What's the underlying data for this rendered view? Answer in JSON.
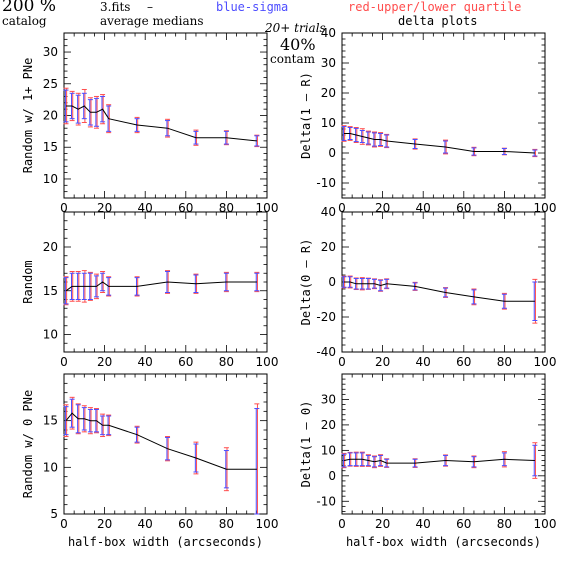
{
  "header": {
    "percent": "200 %",
    "catalog": "catalog",
    "fits": "3.fits",
    "dash": "–",
    "avg_medians": "average medians",
    "blue_sigma": "blue-sigma",
    "red_quartile": "red-upper/lower quartile",
    "trials": "20+ trials",
    "contam_pct": "40%",
    "contam": "contam",
    "delta_plots": "delta plots"
  },
  "colors": {
    "blue": "#4d4dff",
    "red": "#ff4d4d",
    "line": "#000000"
  },
  "chart_data": [
    {
      "type": "line",
      "ylabel": "Random w/ 1+ PNe",
      "xlabel": "",
      "xlim": [
        0,
        100
      ],
      "ylim": [
        7,
        33
      ],
      "xticks": [
        0,
        20,
        40,
        60,
        80,
        100
      ],
      "yticks": [
        10,
        15,
        20,
        25,
        30
      ],
      "x": [
        1,
        4,
        7,
        10,
        13,
        16,
        19,
        22,
        36,
        51,
        65,
        80,
        95
      ],
      "y": [
        21.5,
        21.5,
        21,
        21.5,
        20.5,
        20.5,
        21,
        19.5,
        18.5,
        18,
        16.5,
        16.5,
        16
      ],
      "sigma": [
        2.5,
        2,
        2.2,
        2,
        2,
        2.2,
        2,
        2,
        1,
        1.2,
        1,
        1,
        0.8
      ],
      "quartile": [
        2.8,
        2.3,
        2.5,
        2.6,
        2.3,
        2.5,
        2.3,
        2.2,
        1.2,
        1.4,
        1.2,
        1.1,
        0.9
      ]
    },
    {
      "type": "line",
      "ylabel": "Delta(1 – R)",
      "xlabel": "",
      "xlim": [
        0,
        100
      ],
      "ylim": [
        -15,
        40
      ],
      "xticks": [
        0,
        20,
        40,
        60,
        80,
        100
      ],
      "yticks": [
        -10,
        0,
        10,
        20,
        30,
        40
      ],
      "x": [
        1,
        4,
        7,
        10,
        13,
        16,
        19,
        22,
        36,
        51,
        65,
        80,
        95
      ],
      "y": [
        6.5,
        6.5,
        6,
        5.5,
        5,
        4.5,
        4.5,
        4,
        3,
        2,
        0.5,
        0.5,
        0
      ],
      "sigma": [
        2.3,
        2,
        2.2,
        2,
        2,
        2.2,
        2,
        2,
        1.5,
        2,
        1.2,
        1,
        1
      ],
      "quartile": [
        2.6,
        2.3,
        2.5,
        2.6,
        2.3,
        2.5,
        2.3,
        2.2,
        1.7,
        2.3,
        1.4,
        1.1,
        1.2
      ]
    },
    {
      "type": "line",
      "ylabel": "Random",
      "xlabel": "",
      "xlim": [
        0,
        100
      ],
      "ylim": [
        8,
        24
      ],
      "xticks": [
        0,
        20,
        40,
        60,
        80,
        100
      ],
      "yticks": [
        10,
        15,
        20
      ],
      "x": [
        1,
        4,
        7,
        10,
        13,
        16,
        19,
        22,
        36,
        51,
        65,
        80,
        95
      ],
      "y": [
        15,
        15.5,
        15.5,
        15.5,
        15.5,
        15.5,
        16,
        15.5,
        15.5,
        16,
        15.8,
        16,
        16
      ],
      "sigma": [
        1.5,
        1.5,
        1.5,
        1.5,
        1.5,
        1.2,
        1,
        1,
        1,
        1.2,
        1,
        1,
        1
      ],
      "quartile": [
        1.6,
        1.7,
        1.7,
        1.8,
        1.6,
        1.4,
        1.2,
        1.1,
        1.1,
        1.3,
        1.1,
        1.1,
        1.1
      ]
    },
    {
      "type": "line",
      "ylabel": "Delta(0 – R)",
      "xlabel": "",
      "xlim": [
        0,
        100
      ],
      "ylim": [
        -40,
        40
      ],
      "xticks": [
        0,
        20,
        40,
        60,
        80,
        100
      ],
      "yticks": [
        -40,
        -20,
        0,
        20,
        40
      ],
      "x": [
        1,
        4,
        7,
        10,
        13,
        16,
        19,
        22,
        36,
        51,
        65,
        80,
        95
      ],
      "y": [
        0,
        0,
        -1,
        -1,
        -1,
        -1,
        -2,
        -1,
        -2.5,
        -6,
        -8.5,
        -11,
        -11
      ],
      "sigma": [
        3,
        3,
        3,
        3,
        3,
        2.5,
        3,
        2.5,
        2,
        2.5,
        4,
        4,
        11
      ],
      "quartile": [
        3.3,
        3.4,
        3.3,
        3.5,
        3.2,
        2.8,
        3.3,
        2.8,
        2.3,
        2.8,
        4.5,
        4.5,
        12.5
      ]
    },
    {
      "type": "line",
      "ylabel": "Random w/ 0 PNe",
      "xlabel": "half-box width (arcseconds)",
      "xlim": [
        0,
        100
      ],
      "ylim": [
        5,
        20
      ],
      "xticks": [
        0,
        20,
        40,
        60,
        80,
        100
      ],
      "yticks": [
        5,
        10,
        15
      ],
      "x": [
        1,
        4,
        7,
        10,
        13,
        16,
        19,
        22,
        36,
        51,
        65,
        80,
        95
      ],
      "y": [
        15,
        15.8,
        15.2,
        15.2,
        15,
        15,
        14.5,
        14.5,
        13.5,
        12,
        11,
        9.8,
        9.8
      ],
      "sigma": [
        1.5,
        1.5,
        1.5,
        1.2,
        1.2,
        1.2,
        1,
        1,
        0.8,
        1.2,
        1.5,
        2,
        6.5
      ],
      "quartile": [
        1.7,
        1.7,
        1.6,
        1.4,
        1.4,
        1.3,
        1.2,
        1.1,
        0.9,
        1.3,
        1.7,
        2.3,
        7
      ]
    },
    {
      "type": "line",
      "ylabel": "Delta(1 – 0)",
      "xlabel": "half-box width (arcseconds)",
      "xlim": [
        0,
        100
      ],
      "ylim": [
        -15,
        40
      ],
      "xticks": [
        0,
        20,
        40,
        60,
        80,
        100
      ],
      "yticks": [
        -10,
        0,
        10,
        20,
        30
      ],
      "x": [
        1,
        4,
        7,
        10,
        13,
        16,
        19,
        22,
        36,
        51,
        65,
        80,
        95
      ],
      "y": [
        6,
        6.5,
        6.5,
        6.5,
        6,
        5.5,
        6,
        5,
        5,
        6,
        5.5,
        6.5,
        6
      ],
      "sigma": [
        2.5,
        2.5,
        2.5,
        2.5,
        2,
        2,
        2,
        1.5,
        1.5,
        2,
        2,
        2.5,
        6
      ],
      "quartile": [
        2.8,
        2.7,
        2.8,
        2.8,
        2.3,
        2.3,
        2.3,
        1.7,
        1.7,
        2.2,
        2.3,
        3,
        7
      ]
    }
  ]
}
